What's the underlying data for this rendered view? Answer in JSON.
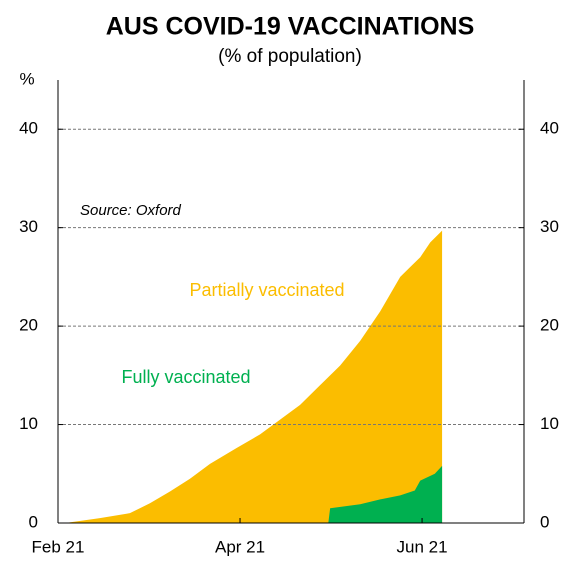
{
  "chart_data": {
    "type": "area",
    "title": "AUS COVID-19 VACCINATIONS",
    "subtitle": "(% of population)",
    "y_unit": "%",
    "annotation": "Source: Oxford",
    "xlim": [
      0,
      5.12
    ],
    "xticks": [
      {
        "value": 0,
        "label": "Feb 21"
      },
      {
        "value": 2,
        "label": "Apr 21"
      },
      {
        "value": 4,
        "label": "Jun 21"
      }
    ],
    "ylim": [
      0,
      45
    ],
    "yticks": [
      0,
      10,
      20,
      30,
      40
    ],
    "grid": true,
    "series": [
      {
        "name": "Partially vaccinated",
        "color": "#fbbd00",
        "x": [
          0.08,
          0.46,
          0.79,
          1.01,
          1.23,
          1.45,
          1.67,
          1.96,
          2.22,
          2.44,
          2.66,
          2.88,
          3.1,
          3.32,
          3.54,
          3.76,
          3.87,
          3.98,
          4.09,
          4.22
        ],
        "values": [
          0,
          0.5,
          1,
          2,
          3.2,
          4.5,
          6,
          7.6,
          9,
          10.5,
          12,
          14,
          16,
          18.5,
          21.5,
          25,
          26,
          27,
          28.5,
          29.7
        ]
      },
      {
        "name": "Fully vaccinated",
        "color": "#00b050",
        "x": [
          2.97,
          2.99,
          3.32,
          3.54,
          3.76,
          3.92,
          3.98,
          4.14,
          4.22
        ],
        "values": [
          0,
          1.5,
          1.9,
          2.4,
          2.8,
          3.3,
          4.3,
          5,
          5.8
        ]
      }
    ]
  }
}
